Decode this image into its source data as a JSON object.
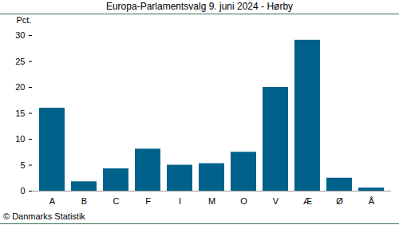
{
  "chart_data": {
    "type": "bar",
    "title": "Europa-Parlamentsvalg 9. juni 2024 - Hørby",
    "y_label": "Pct.",
    "caption": "© Danmarks Statistik",
    "categories": [
      "A",
      "B",
      "C",
      "F",
      "I",
      "M",
      "O",
      "V",
      "Æ",
      "Ø",
      "Å"
    ],
    "values": [
      16.0,
      1.8,
      4.3,
      8.1,
      5.0,
      5.3,
      7.5,
      20.0,
      29.1,
      2.5,
      0.6
    ],
    "color": "#00628b",
    "ylim": [
      0,
      30
    ],
    "yticks": [
      0,
      5,
      10,
      15,
      20,
      25,
      30
    ],
    "grid": false
  }
}
